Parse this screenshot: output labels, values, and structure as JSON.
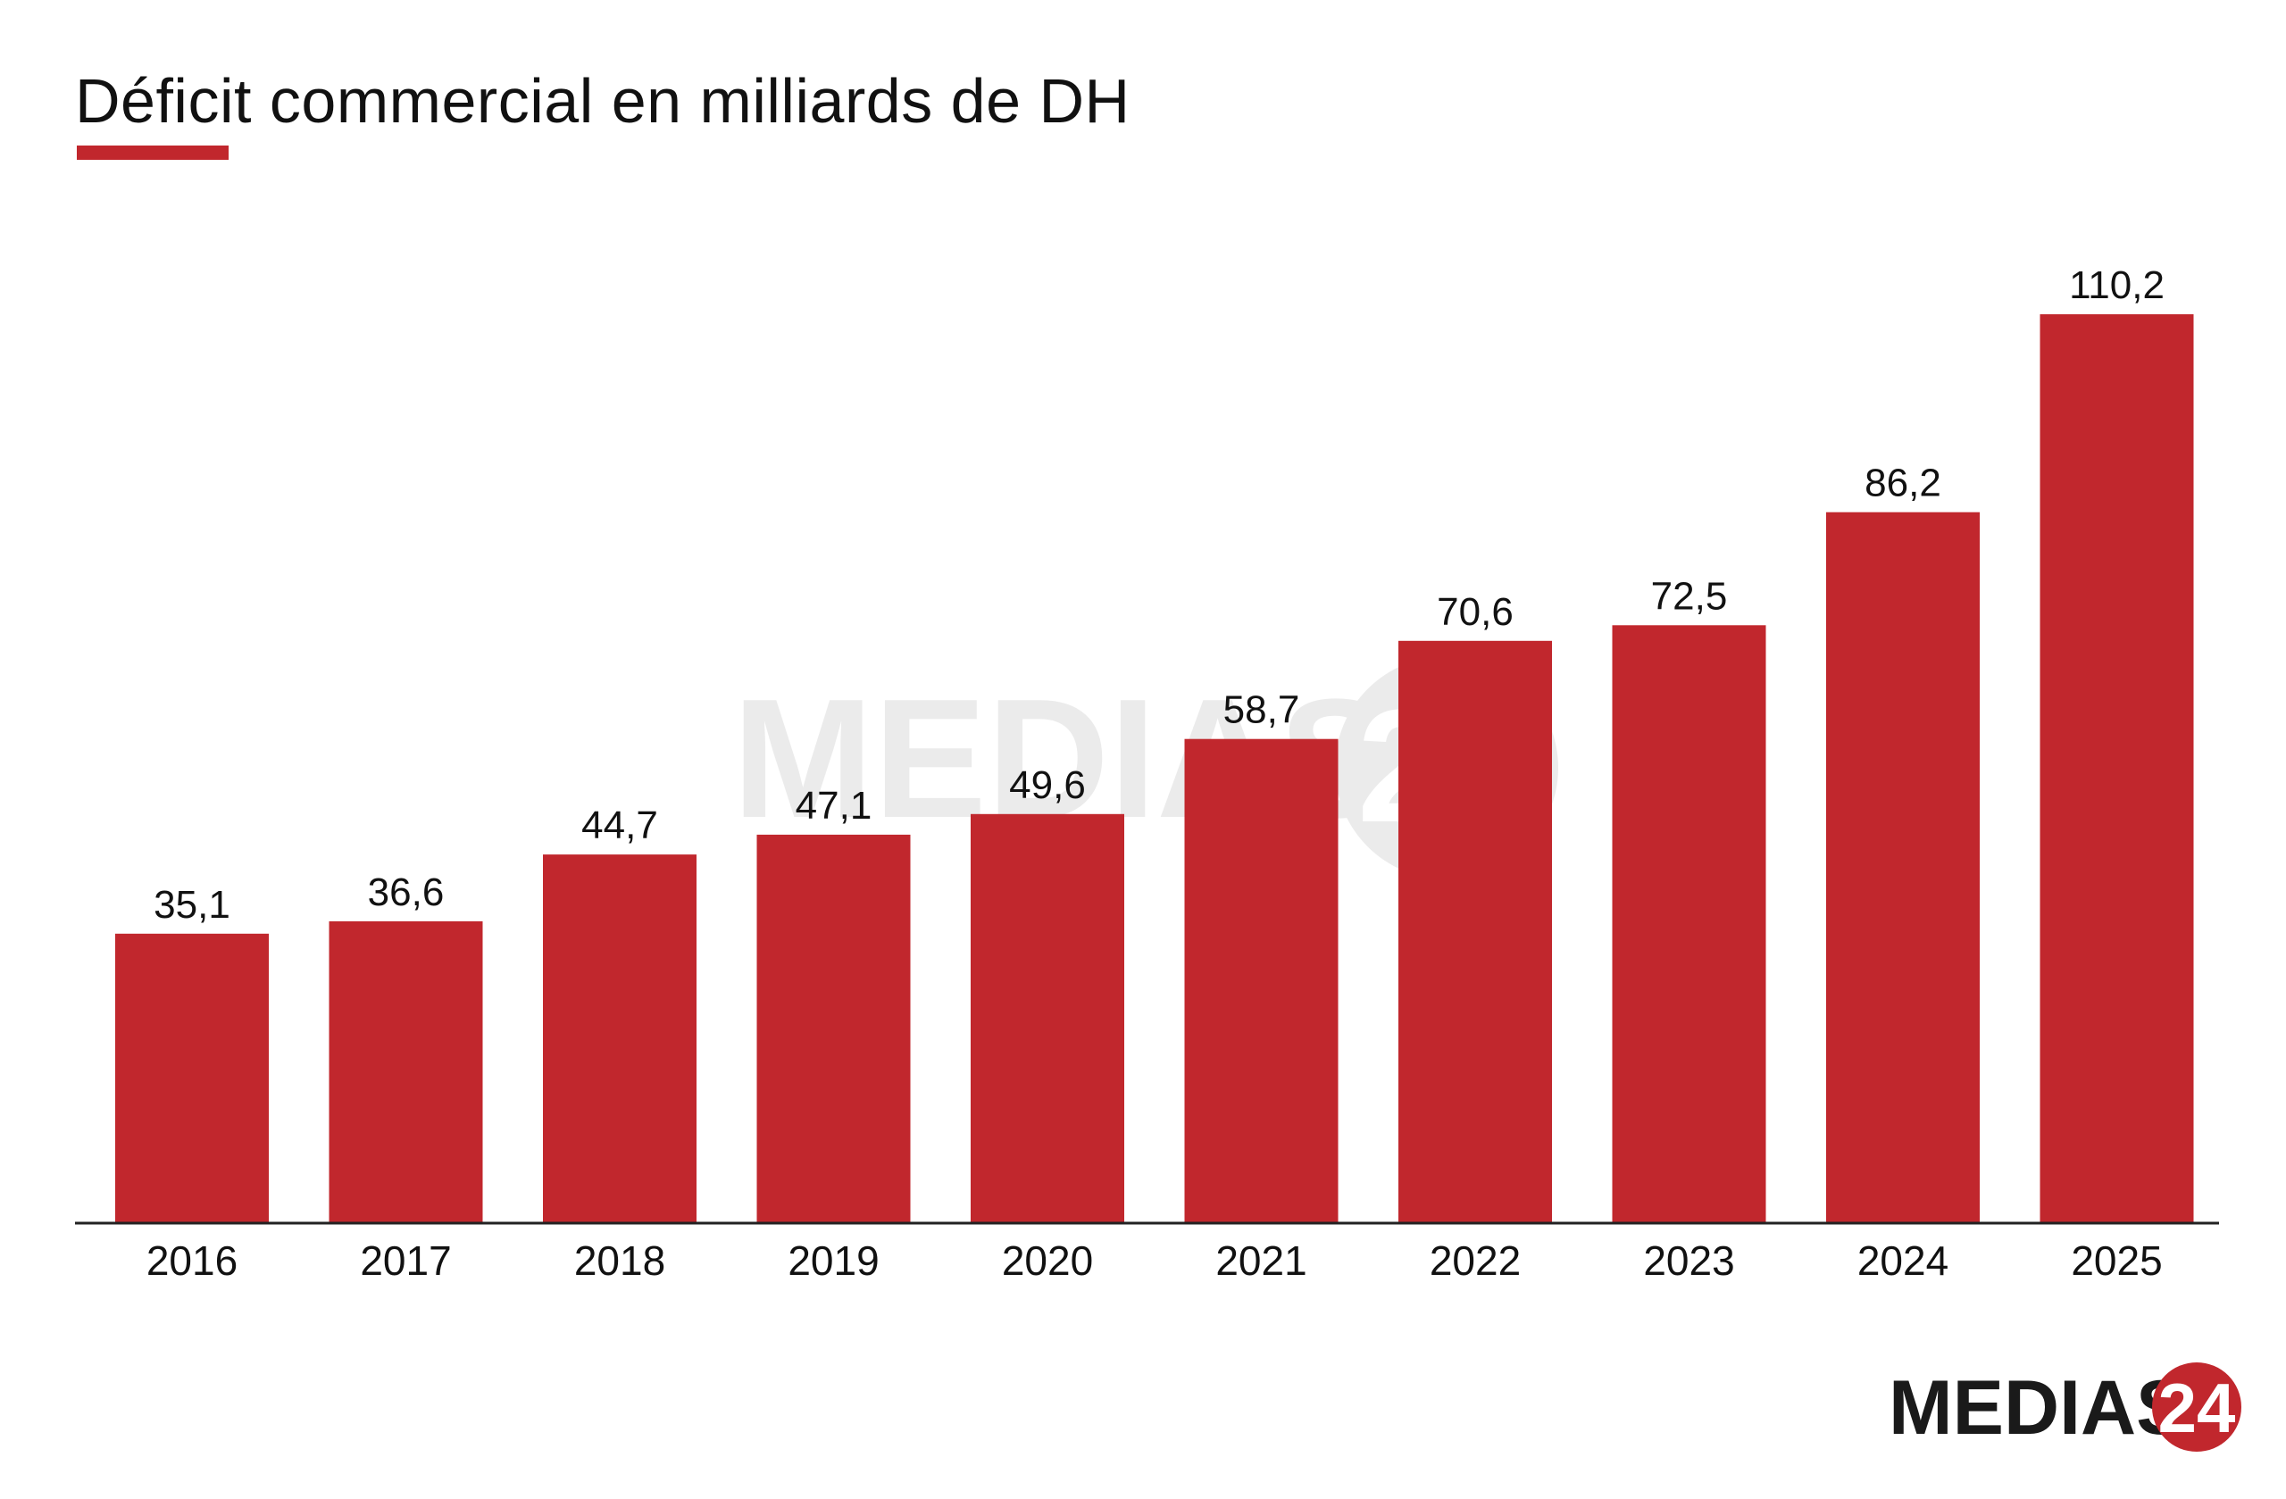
{
  "chart_data": {
    "type": "bar",
    "title": "Déficit commercial en milliards de DH",
    "xlabel": "",
    "ylabel": "",
    "categories": [
      "2016",
      "2017",
      "2018",
      "2019",
      "2020",
      "2021",
      "2022",
      "2023",
      "2024",
      "2025"
    ],
    "values": [
      35.1,
      36.6,
      44.7,
      47.1,
      49.6,
      58.7,
      70.6,
      72.5,
      86.2,
      110.2
    ],
    "value_labels": [
      "35,1",
      "36,6",
      "44,7",
      "47,1",
      "49,6",
      "58,7",
      "70,6",
      "72,5",
      "86,2",
      "110,2"
    ],
    "ylim": [
      0,
      120
    ],
    "grid": false,
    "legend": "none",
    "colors": {
      "bar": "#c1272d",
      "axis": "#222222",
      "text": "#111111"
    }
  },
  "branding": {
    "logo_text": "MEDIAS",
    "logo_number": "24",
    "watermark_text": "MEDIAS",
    "watermark_number": "24",
    "logo_icon": "medias24-logo"
  }
}
